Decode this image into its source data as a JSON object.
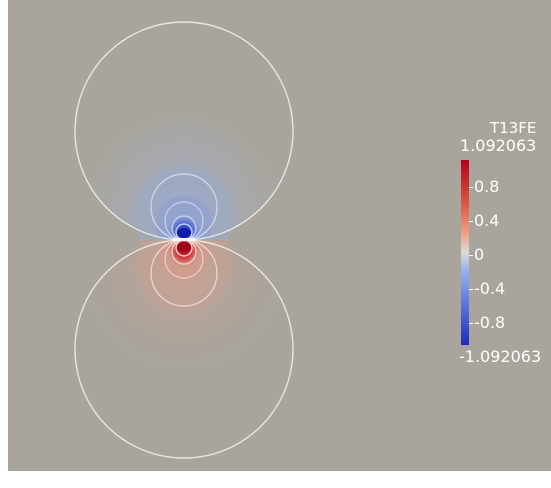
{
  "legend": {
    "title": "T13FE",
    "max_label": "1.092063",
    "min_label": "-1.092063",
    "ticks": [
      "0.8",
      "0.4",
      "0",
      "-0.4",
      "-0.8"
    ],
    "range": [
      -1.092063,
      1.092063
    ]
  },
  "colors": {
    "background": "#a9a59d",
    "positive": "#b3001e",
    "negative": "#1a2ebc",
    "contour": "#e6e6e6"
  }
}
